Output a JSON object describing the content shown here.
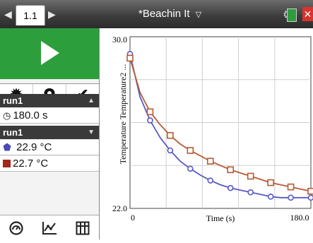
{
  "topbar": {
    "nav_prev": "◀",
    "tab_label": "1.1",
    "nav_next": "▶",
    "doc_title": "*Beachin It",
    "title_chevron": "▽",
    "close": "✕"
  },
  "left_panel": {
    "play_icon": "play",
    "tool_icons": [
      "gear",
      "pin",
      "check"
    ],
    "run_header": "run1",
    "duration": "180.0 s",
    "run_dropdown": "run1",
    "sensors": [
      {
        "value": "22.9 °C",
        "marker": "circle",
        "color": "#4a4ab8"
      },
      {
        "value": "22.7 °C",
        "marker": "square",
        "color": "#a4281a"
      }
    ],
    "bottom_icons": [
      "meter",
      "graph",
      "table"
    ]
  },
  "chart_data": {
    "type": "line",
    "xlabel": "Time (s)",
    "ylabel": "Temperature Temperature2 ...",
    "xlim": [
      0,
      180
    ],
    "ylim": [
      22,
      30
    ],
    "x_tick_labels": [
      "0",
      "180.0"
    ],
    "y_tick_labels": [
      "22.0",
      "30.0"
    ],
    "grid": true,
    "series": [
      {
        "marker": "circle",
        "color": "#5858c8",
        "x": [
          0,
          10,
          20,
          30,
          40,
          50,
          60,
          70,
          80,
          90,
          100,
          110,
          120,
          130,
          140,
          150,
          160,
          170,
          180
        ],
        "values": [
          29.2,
          27.2,
          26.1,
          25.3,
          24.7,
          24.2,
          23.85,
          23.55,
          23.3,
          23.1,
          22.95,
          22.85,
          22.75,
          22.65,
          22.55,
          22.5,
          22.5,
          22.5,
          22.5
        ]
      },
      {
        "marker": "square",
        "color": "#b85a32",
        "x": [
          0,
          10,
          20,
          30,
          40,
          50,
          60,
          70,
          80,
          90,
          100,
          110,
          120,
          130,
          140,
          150,
          160,
          170,
          180
        ],
        "values": [
          29.0,
          27.4,
          26.5,
          25.9,
          25.4,
          25.0,
          24.7,
          24.45,
          24.2,
          24.0,
          23.8,
          23.65,
          23.5,
          23.35,
          23.2,
          23.1,
          23.0,
          22.9,
          22.8
        ]
      }
    ]
  }
}
